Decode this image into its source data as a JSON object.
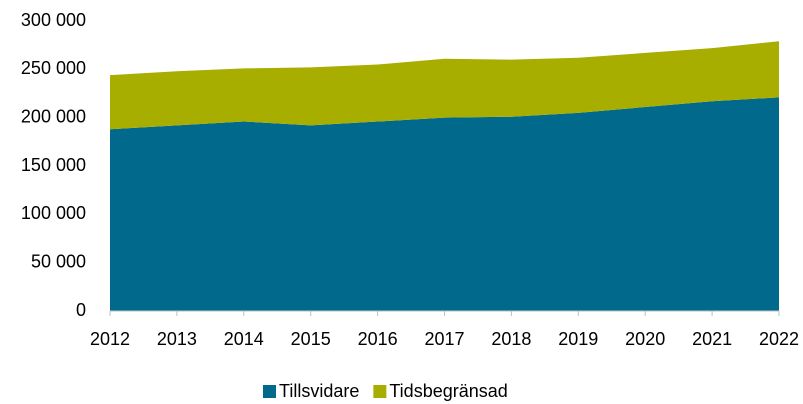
{
  "chart_data": {
    "type": "stacked_area",
    "categories": [
      "2012",
      "2013",
      "2014",
      "2015",
      "2016",
      "2017",
      "2018",
      "2019",
      "2020",
      "2021",
      "2022"
    ],
    "series": [
      {
        "name": "Tillsvidare",
        "color": "#00698c",
        "values": [
          188000,
          192000,
          196000,
          192000,
          196000,
          200000,
          201000,
          205000,
          211000,
          217000,
          221000
        ]
      },
      {
        "name": "Tidsbegränsad",
        "color": "#a8ae00",
        "values": [
          56000,
          56000,
          55000,
          60000,
          59000,
          61000,
          59000,
          57000,
          56000,
          55000,
          58000
        ]
      }
    ],
    "ylim": [
      0,
      300000
    ],
    "yticks": [
      0,
      {
        "value": 50000,
        "label": "50 000"
      },
      {
        "value": 100000,
        "label": "100 000"
      },
      {
        "value": 150000,
        "label": "150 000"
      },
      {
        "value": 200000,
        "label": "200 000"
      },
      {
        "value": 250000,
        "label": "250 000"
      },
      {
        "value": 300000,
        "label": "300 000"
      }
    ],
    "legend": "bottom"
  }
}
